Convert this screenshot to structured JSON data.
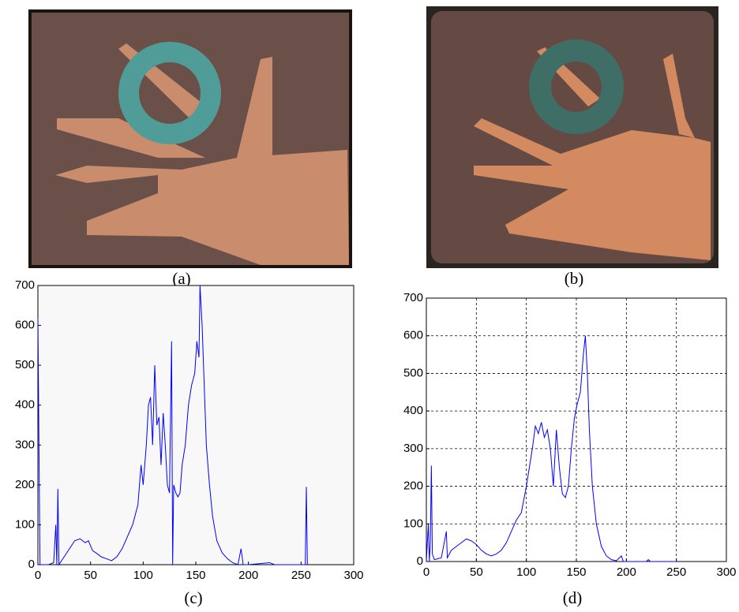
{
  "images": [
    {
      "caption": "(a)"
    },
    {
      "caption": "(b)"
    }
  ],
  "chart_data": [
    {
      "type": "line",
      "caption": "(c)",
      "color": "#0000ff",
      "grid": false,
      "xlim": [
        0,
        300
      ],
      "ylim": [
        0,
        700
      ],
      "xticks": [
        0,
        50,
        100,
        150,
        200,
        250,
        300
      ],
      "yticks": [
        0,
        100,
        200,
        300,
        400,
        500,
        600,
        700
      ],
      "x": [
        0,
        1,
        2,
        10,
        15,
        17,
        18,
        19,
        20,
        25,
        30,
        35,
        40,
        45,
        48,
        52,
        55,
        60,
        65,
        70,
        75,
        80,
        85,
        90,
        95,
        98,
        100,
        103,
        105,
        107,
        109,
        111,
        113,
        115,
        117,
        119,
        121,
        123,
        125,
        127,
        128,
        129,
        131,
        133,
        135,
        137,
        140,
        143,
        146,
        149,
        151,
        153,
        154,
        156,
        158,
        160,
        163,
        166,
        170,
        175,
        180,
        185,
        190,
        193,
        195,
        200,
        220,
        225,
        254,
        255,
        256
      ],
      "values": [
        620,
        300,
        0,
        0,
        5,
        100,
        0,
        190,
        0,
        20,
        40,
        60,
        65,
        55,
        60,
        35,
        30,
        20,
        15,
        10,
        20,
        40,
        70,
        100,
        150,
        250,
        200,
        300,
        400,
        420,
        300,
        500,
        350,
        370,
        250,
        380,
        300,
        200,
        180,
        560,
        0,
        200,
        180,
        170,
        180,
        250,
        300,
        400,
        450,
        480,
        560,
        520,
        700,
        600,
        450,
        300,
        200,
        120,
        60,
        30,
        15,
        5,
        0,
        40,
        0,
        0,
        5,
        0,
        0,
        195,
        0
      ]
    },
    {
      "type": "line",
      "caption": "(d)",
      "color": "#0000ff",
      "grid": true,
      "xlim": [
        0,
        300
      ],
      "ylim": [
        0,
        700
      ],
      "xticks": [
        0,
        50,
        100,
        150,
        200,
        250,
        300
      ],
      "yticks": [
        0,
        100,
        200,
        300,
        400,
        500,
        600,
        700
      ],
      "x": [
        0,
        2,
        3,
        4,
        5,
        6,
        8,
        15,
        20,
        21,
        25,
        30,
        35,
        40,
        45,
        50,
        55,
        60,
        65,
        70,
        75,
        80,
        85,
        90,
        95,
        100,
        103,
        106,
        109,
        112,
        115,
        118,
        121,
        124,
        127,
        130,
        133,
        136,
        139,
        142,
        145,
        148,
        151,
        154,
        157,
        159,
        161,
        163,
        166,
        170,
        175,
        180,
        185,
        190,
        195,
        197,
        220,
        222,
        224,
        250
      ],
      "values": [
        0,
        100,
        0,
        50,
        255,
        20,
        5,
        10,
        80,
        10,
        30,
        40,
        50,
        60,
        55,
        45,
        30,
        20,
        15,
        20,
        30,
        50,
        80,
        110,
        130,
        200,
        250,
        300,
        360,
        340,
        370,
        330,
        350,
        300,
        200,
        350,
        250,
        180,
        170,
        200,
        300,
        380,
        420,
        450,
        550,
        600,
        500,
        350,
        200,
        100,
        40,
        15,
        5,
        2,
        15,
        0,
        0,
        5,
        0,
        0
      ]
    }
  ]
}
